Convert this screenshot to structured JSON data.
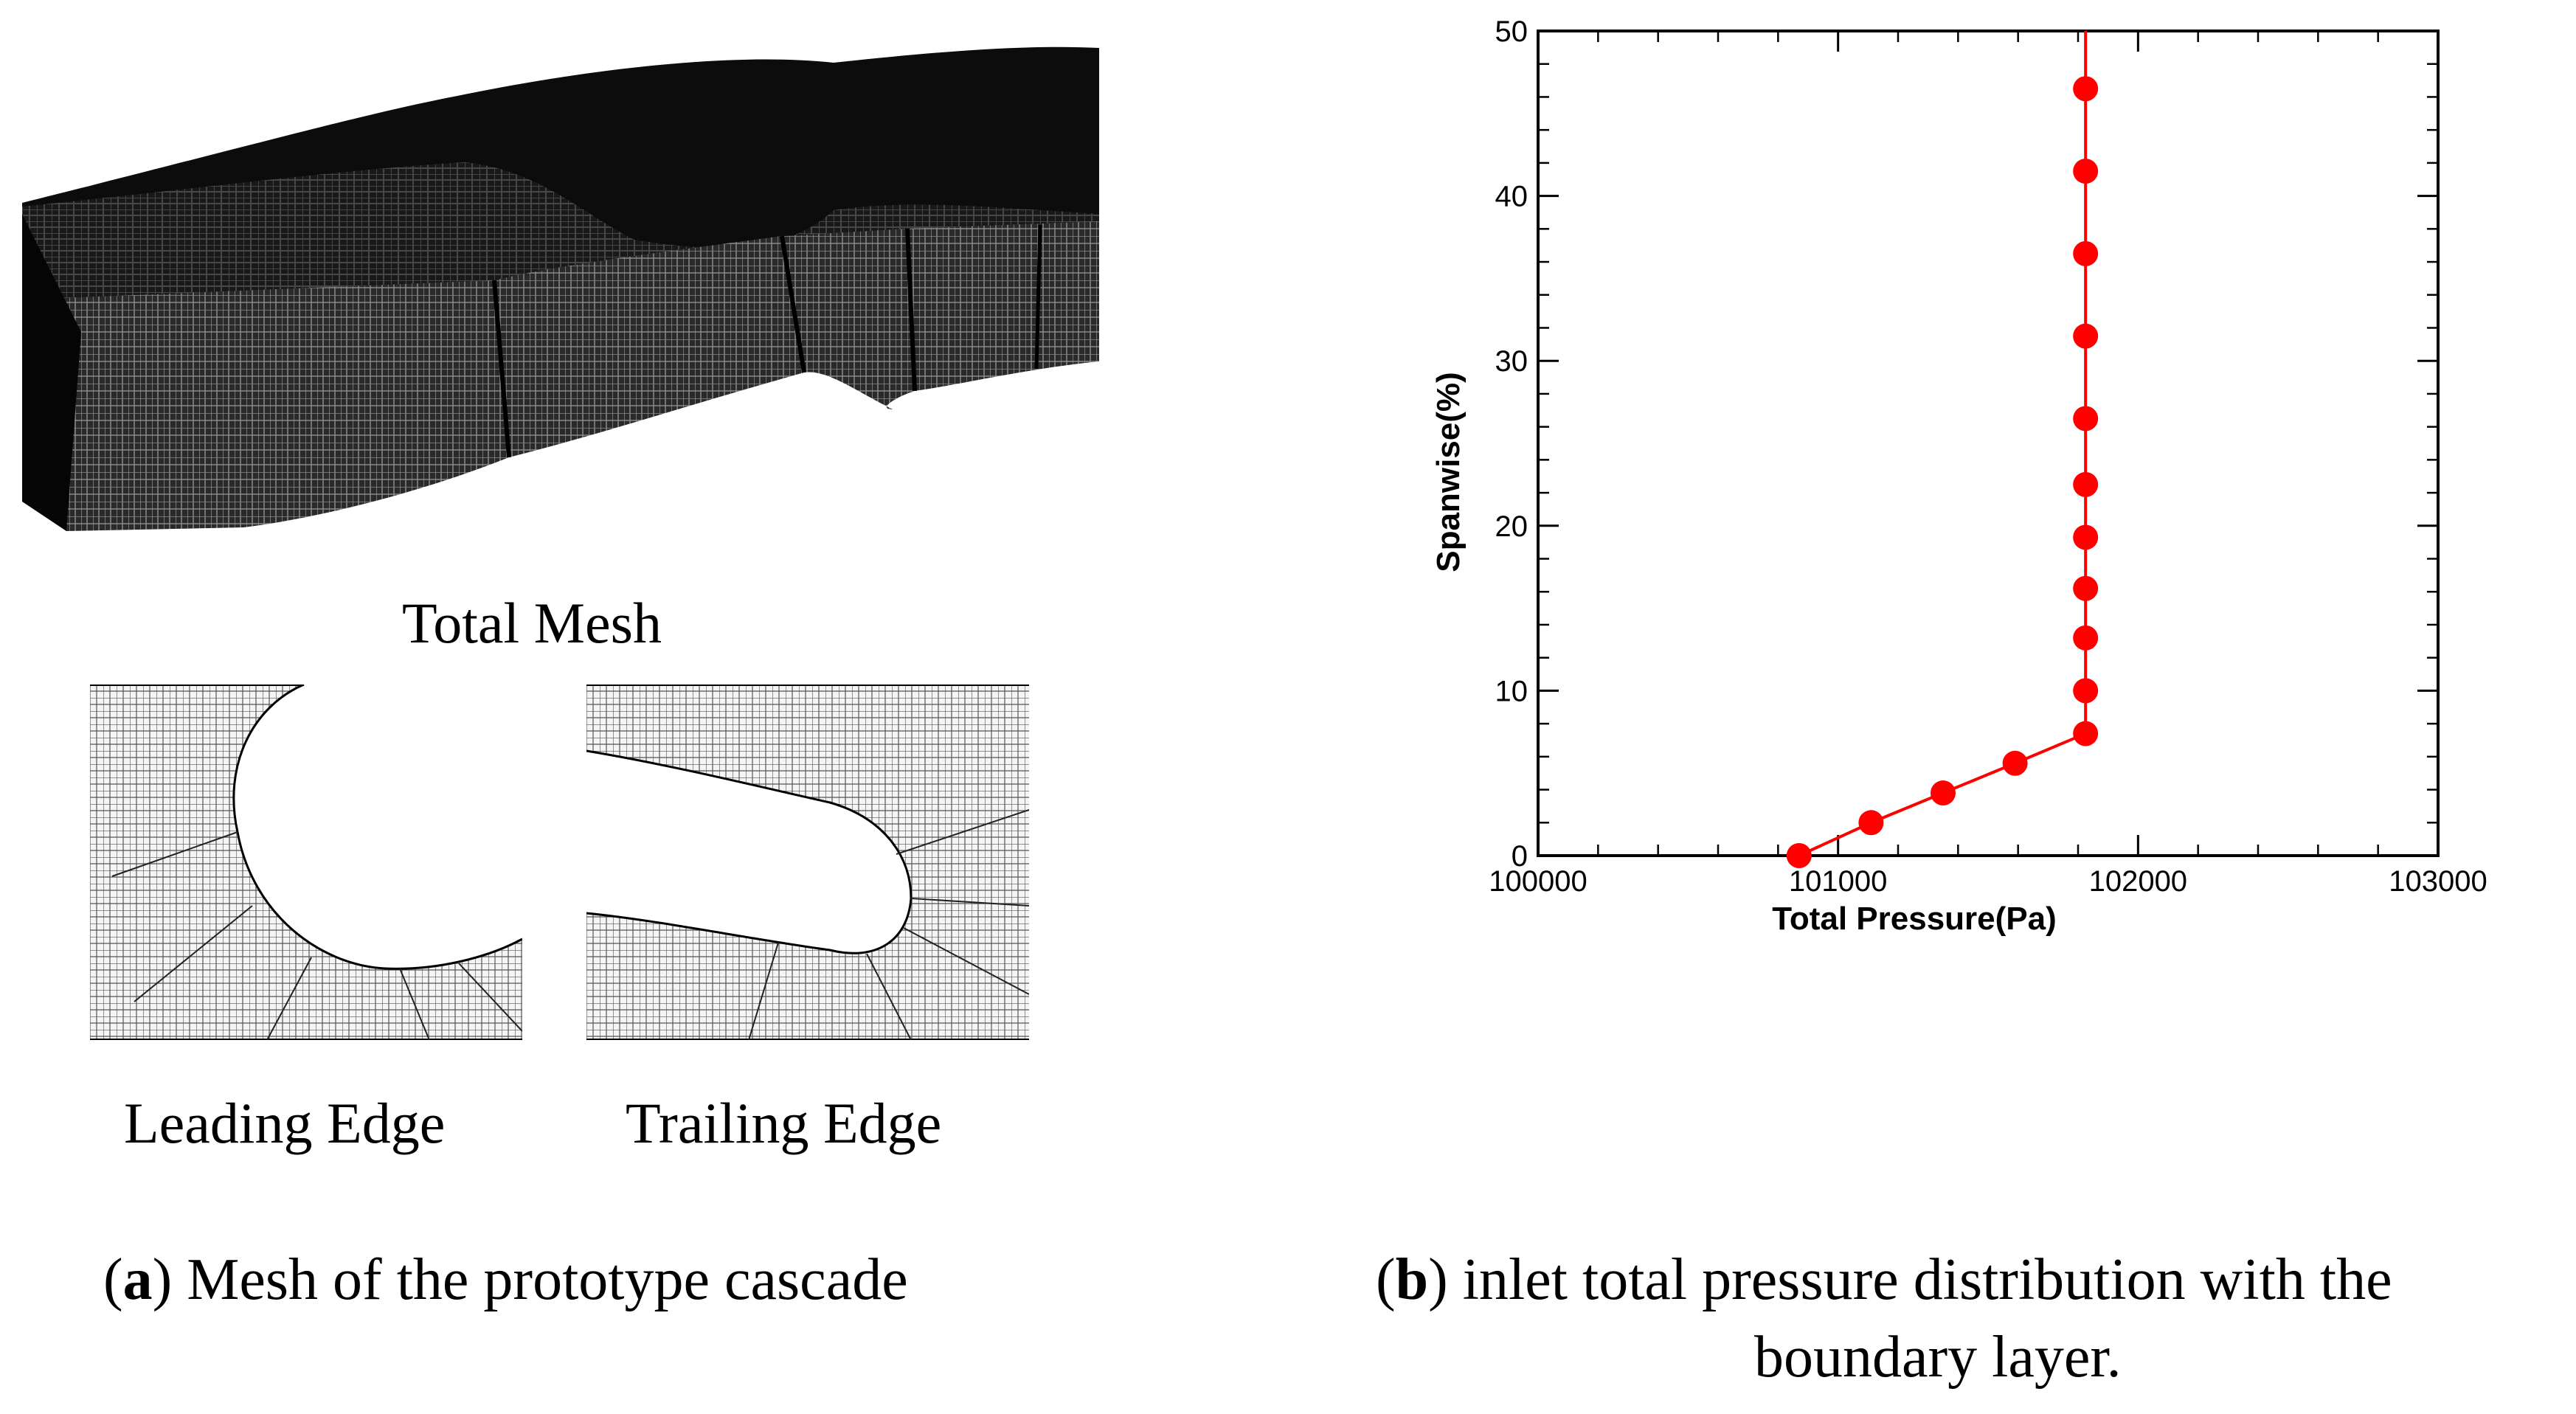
{
  "figure": {
    "panel_a": {
      "total_mesh_label": "Total Mesh",
      "leading_edge_label": "Leading Edge",
      "trailing_edge_label": "Trailing Edge",
      "caption_letter": "a",
      "caption_text": "Mesh of the prototype cascade"
    },
    "panel_b": {
      "caption_letter": "b",
      "caption_line1": "inlet total pressure distribution with the",
      "caption_line2": "boundary layer."
    }
  },
  "chart_data": {
    "type": "line",
    "xlabel": "Total Pressure(Pa)",
    "ylabel": "Spanwise(%)",
    "xlim": [
      100000,
      103000
    ],
    "ylim": [
      0,
      50
    ],
    "xticks": [
      100000,
      101000,
      102000,
      103000
    ],
    "yticks": [
      0,
      10,
      20,
      30,
      40,
      50
    ],
    "grid": false,
    "color": "#ff0000",
    "line": [
      {
        "x": 100870,
        "y": 0
      },
      {
        "x": 101110,
        "y": 2
      },
      {
        "x": 101350,
        "y": 3.8
      },
      {
        "x": 101590,
        "y": 5.6
      },
      {
        "x": 101825,
        "y": 7.4
      },
      {
        "x": 101825,
        "y": 50
      }
    ],
    "markers": [
      {
        "x": 100870,
        "y": 0
      },
      {
        "x": 101110,
        "y": 2
      },
      {
        "x": 101350,
        "y": 3.8
      },
      {
        "x": 101590,
        "y": 5.6
      },
      {
        "x": 101825,
        "y": 7.4
      },
      {
        "x": 101825,
        "y": 10
      },
      {
        "x": 101825,
        "y": 13.2
      },
      {
        "x": 101825,
        "y": 16.2
      },
      {
        "x": 101825,
        "y": 19.3
      },
      {
        "x": 101825,
        "y": 22.5
      },
      {
        "x": 101825,
        "y": 26.5
      },
      {
        "x": 101825,
        "y": 31.5
      },
      {
        "x": 101825,
        "y": 36.5
      },
      {
        "x": 101825,
        "y": 41.5
      },
      {
        "x": 101825,
        "y": 46.5
      }
    ]
  }
}
